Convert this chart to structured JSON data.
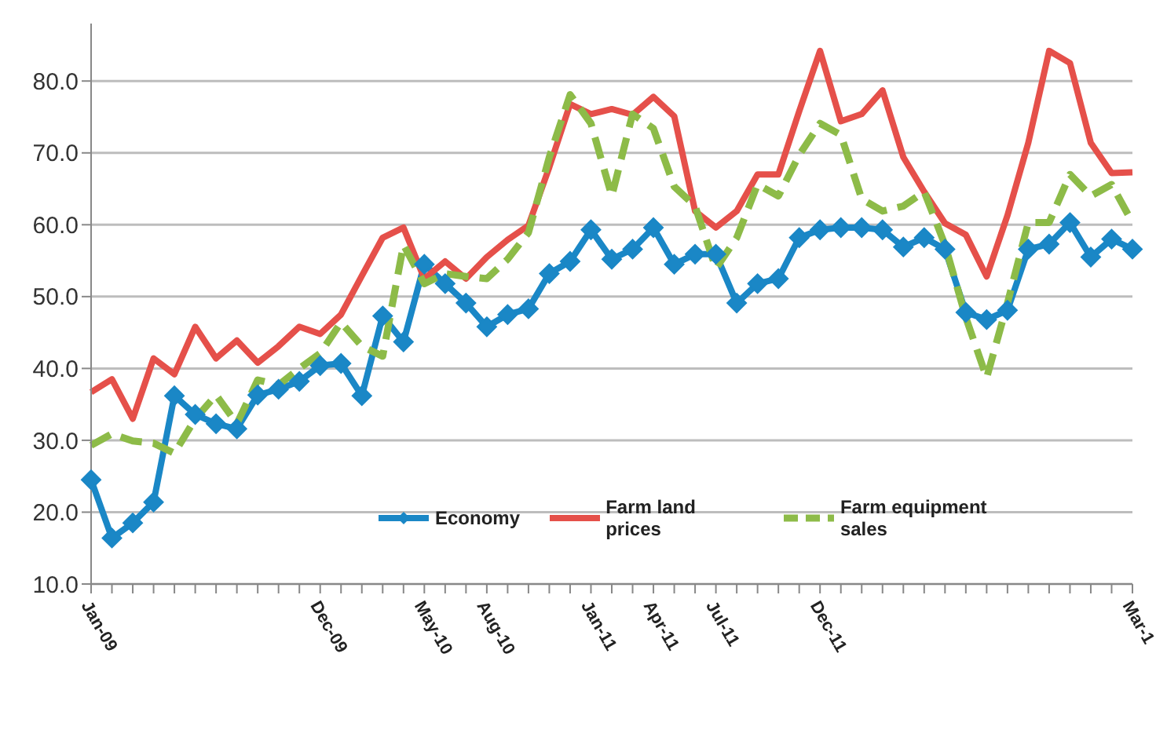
{
  "chart_data": {
    "type": "line",
    "categories": [
      "Jan-09",
      null,
      null,
      null,
      null,
      null,
      null,
      null,
      null,
      null,
      null,
      "Dec-09",
      null,
      null,
      null,
      null,
      "May-10",
      null,
      null,
      "Aug-10",
      null,
      null,
      null,
      null,
      "Jan-11",
      null,
      null,
      "Apr-11",
      null,
      null,
      "Jul-11",
      null,
      null,
      null,
      null,
      "Dec-11",
      null,
      null,
      null,
      null,
      null,
      null,
      null,
      null,
      null,
      null,
      null,
      null,
      null,
      null,
      "Mar-1"
    ],
    "series": [
      {
        "name": "Economy",
        "color": "#1a87c6",
        "marker": "diamond",
        "line_style": "solid",
        "values": [
          24.5,
          16.4,
          18.5,
          21.4,
          36.2,
          33.6,
          32.3,
          31.6,
          36.3,
          37.1,
          38.2,
          40.4,
          40.7,
          36.2,
          47.3,
          43.7,
          54.5,
          51.8,
          49.1,
          45.8,
          47.5,
          48.3,
          53.2,
          54.9,
          59.3,
          55.2,
          56.6,
          59.6,
          54.5,
          55.9,
          55.9,
          49.1,
          51.8,
          52.5,
          58.2,
          59.3,
          59.6,
          59.6,
          59.3,
          56.9,
          58.2,
          56.6,
          47.8,
          46.8,
          48.1,
          56.6,
          57.3,
          60.3,
          55.5,
          58.0,
          56.6
        ]
      },
      {
        "name": "Farm land prices",
        "color": "#e5504a",
        "marker": "none",
        "line_style": "solid",
        "values": [
          36.7,
          38.5,
          33.0,
          41.4,
          39.2,
          45.8,
          41.4,
          43.9,
          40.8,
          43.1,
          45.8,
          44.8,
          47.5,
          52.9,
          58.2,
          59.6,
          52.5,
          54.9,
          52.5,
          55.5,
          57.9,
          59.9,
          68.0,
          76.8,
          75.4,
          76.1,
          75.3,
          77.8,
          75.1,
          61.9,
          59.6,
          61.9,
          67.0,
          67.0,
          75.8,
          84.2,
          74.4,
          75.4,
          78.7,
          69.4,
          64.6,
          60.2,
          58.6,
          52.8,
          61.3,
          71.4,
          84.2,
          82.5,
          71.4,
          67.2,
          67.3
        ]
      },
      {
        "name": "Farm equipment sales",
        "color": "#8dbb48",
        "marker": "none",
        "line_style": "dashed",
        "values": [
          29.3,
          30.9,
          29.9,
          29.6,
          28.2,
          33.0,
          36.3,
          32.3,
          38.4,
          37.7,
          40.0,
          42.1,
          46.4,
          43.1,
          41.7,
          57.2,
          51.8,
          53.2,
          52.8,
          52.5,
          55.2,
          58.9,
          69.4,
          78.1,
          74.1,
          64.0,
          75.4,
          73.4,
          65.3,
          62.6,
          53.9,
          58.2,
          65.6,
          64.0,
          69.7,
          74.1,
          72.5,
          63.6,
          61.9,
          62.6,
          64.6,
          57.2,
          47.1,
          38.7,
          49.1,
          60.3,
          60.3,
          67.0,
          64.0,
          65.6,
          60.3
        ]
      }
    ],
    "ylim": [
      10,
      88
    ],
    "yticks": [
      {
        "value": 10,
        "label": "10.0"
      },
      {
        "value": 20,
        "label": "20.0"
      },
      {
        "value": 30,
        "label": "30.0"
      },
      {
        "value": 40,
        "label": "40.0"
      },
      {
        "value": 50,
        "label": "50.0"
      },
      {
        "value": 60,
        "label": "60.0"
      },
      {
        "value": 70,
        "label": "70.0"
      },
      {
        "value": 80,
        "label": "80.0"
      }
    ],
    "grid": "y",
    "legend": "bottom"
  }
}
